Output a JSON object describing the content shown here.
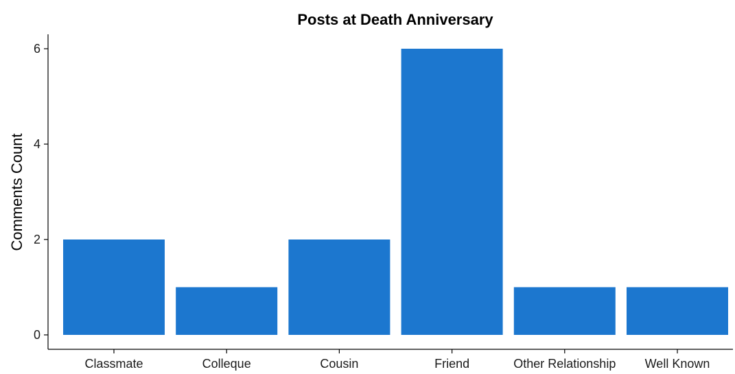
{
  "chart_data": {
    "type": "bar",
    "title": "Posts at Death Anniversary",
    "xlabel": "",
    "ylabel": "Comments Count",
    "categories": [
      "Classmate",
      "Colleque",
      "Cousin",
      "Friend",
      "Other Relationship",
      "Well Known"
    ],
    "values": [
      2,
      1,
      2,
      6,
      1,
      1
    ],
    "ylim": [
      0,
      6.25
    ],
    "yticks": [
      0,
      2,
      4,
      6
    ],
    "bar_color": "#1c77cf",
    "grid": false,
    "legend": "none"
  }
}
